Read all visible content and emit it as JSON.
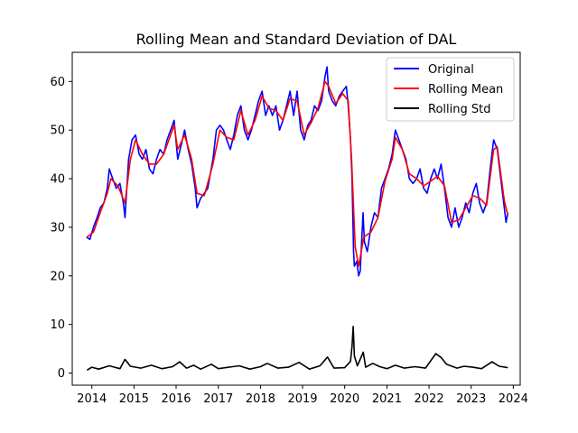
{
  "chart_data": {
    "type": "line",
    "title": "Rolling Mean and Standard Deviation of DAL",
    "xlabel": "",
    "ylabel": "",
    "xlim": [
      "2013-07-15",
      "2024-03-01"
    ],
    "ylim": [
      -2.5,
      66
    ],
    "x_ticks": [
      "2014",
      "2015",
      "2016",
      "2017",
      "2018",
      "2019",
      "2020",
      "2021",
      "2022",
      "2023",
      "2024"
    ],
    "y_ticks": [
      0,
      10,
      20,
      30,
      40,
      50,
      60
    ],
    "grid": false,
    "legend": {
      "placement": "upper right"
    },
    "series": [
      {
        "name": "Original",
        "color": "#0000ff",
        "points": [
          [
            "2013-11-15",
            28
          ],
          [
            "2013-12-15",
            27.5
          ],
          [
            "2014-01-15",
            30
          ],
          [
            "2014-02-15",
            32
          ],
          [
            "2014-03-15",
            34
          ],
          [
            "2014-04-15",
            35
          ],
          [
            "2014-05-15",
            38
          ],
          [
            "2014-06-01",
            42
          ],
          [
            "2014-07-01",
            40
          ],
          [
            "2014-08-01",
            38
          ],
          [
            "2014-09-01",
            39
          ],
          [
            "2014-10-01",
            35
          ],
          [
            "2014-10-15",
            32
          ],
          [
            "2014-11-15",
            44
          ],
          [
            "2014-12-15",
            48
          ],
          [
            "2015-01-15",
            49
          ],
          [
            "2015-02-15",
            45
          ],
          [
            "2015-03-15",
            44
          ],
          [
            "2015-04-15",
            46
          ],
          [
            "2015-05-15",
            42
          ],
          [
            "2015-06-15",
            41
          ],
          [
            "2015-07-15",
            44
          ],
          [
            "2015-08-15",
            46
          ],
          [
            "2015-09-15",
            45
          ],
          [
            "2015-10-15",
            48
          ],
          [
            "2015-11-15",
            50
          ],
          [
            "2015-12-15",
            52
          ],
          [
            "2016-01-15",
            44
          ],
          [
            "2016-02-15",
            47
          ],
          [
            "2016-03-15",
            50
          ],
          [
            "2016-04-15",
            46
          ],
          [
            "2016-05-15",
            43
          ],
          [
            "2016-06-15",
            38
          ],
          [
            "2016-07-01",
            34
          ],
          [
            "2016-08-01",
            36
          ],
          [
            "2016-09-01",
            37
          ],
          [
            "2016-10-01",
            38
          ],
          [
            "2016-11-15",
            44
          ],
          [
            "2016-12-15",
            50
          ],
          [
            "2017-01-15",
            51
          ],
          [
            "2017-02-15",
            50
          ],
          [
            "2017-03-15",
            48
          ],
          [
            "2017-04-15",
            46
          ],
          [
            "2017-05-15",
            49
          ],
          [
            "2017-06-15",
            53
          ],
          [
            "2017-07-15",
            55
          ],
          [
            "2017-08-15",
            50
          ],
          [
            "2017-09-15",
            48
          ],
          [
            "2017-10-15",
            50
          ],
          [
            "2017-11-15",
            53
          ],
          [
            "2017-12-15",
            56
          ],
          [
            "2018-01-15",
            58
          ],
          [
            "2018-02-15",
            53
          ],
          [
            "2018-03-15",
            55
          ],
          [
            "2018-04-15",
            53
          ],
          [
            "2018-05-15",
            55
          ],
          [
            "2018-06-15",
            50
          ],
          [
            "2018-07-15",
            52
          ],
          [
            "2018-08-15",
            55
          ],
          [
            "2018-09-15",
            58
          ],
          [
            "2018-10-15",
            53
          ],
          [
            "2018-11-15",
            58
          ],
          [
            "2018-12-15",
            50
          ],
          [
            "2019-01-15",
            48
          ],
          [
            "2019-02-15",
            51
          ],
          [
            "2019-03-15",
            52
          ],
          [
            "2019-04-15",
            55
          ],
          [
            "2019-05-15",
            54
          ],
          [
            "2019-06-15",
            56
          ],
          [
            "2019-07-15",
            61
          ],
          [
            "2019-08-01",
            63
          ],
          [
            "2019-08-15",
            58
          ],
          [
            "2019-09-15",
            56
          ],
          [
            "2019-10-15",
            55
          ],
          [
            "2019-11-15",
            57
          ],
          [
            "2019-12-15",
            58
          ],
          [
            "2020-01-15",
            59
          ],
          [
            "2020-02-01",
            55
          ],
          [
            "2020-02-20",
            48
          ],
          [
            "2020-03-05",
            40
          ],
          [
            "2020-03-18",
            25
          ],
          [
            "2020-03-25",
            22
          ],
          [
            "2020-04-15",
            23
          ],
          [
            "2020-05-01",
            20
          ],
          [
            "2020-05-15",
            21
          ],
          [
            "2020-06-08",
            33
          ],
          [
            "2020-06-20",
            27
          ],
          [
            "2020-07-15",
            25
          ],
          [
            "2020-08-15",
            30
          ],
          [
            "2020-09-15",
            33
          ],
          [
            "2020-10-15",
            32
          ],
          [
            "2020-11-15",
            38
          ],
          [
            "2020-12-15",
            40
          ],
          [
            "2021-01-15",
            42
          ],
          [
            "2021-02-15",
            45
          ],
          [
            "2021-03-15",
            50
          ],
          [
            "2021-04-15",
            48
          ],
          [
            "2021-05-15",
            46
          ],
          [
            "2021-06-15",
            44
          ],
          [
            "2021-07-15",
            40
          ],
          [
            "2021-08-15",
            39
          ],
          [
            "2021-09-15",
            40
          ],
          [
            "2021-10-15",
            42
          ],
          [
            "2021-11-15",
            38
          ],
          [
            "2021-12-15",
            37
          ],
          [
            "2022-01-15",
            40
          ],
          [
            "2022-02-15",
            42
          ],
          [
            "2022-03-15",
            40
          ],
          [
            "2022-04-15",
            43
          ],
          [
            "2022-05-15",
            38
          ],
          [
            "2022-06-15",
            32
          ],
          [
            "2022-07-15",
            30
          ],
          [
            "2022-08-15",
            34
          ],
          [
            "2022-09-15",
            30
          ],
          [
            "2022-10-15",
            32
          ],
          [
            "2022-11-15",
            35
          ],
          [
            "2022-12-15",
            33
          ],
          [
            "2023-01-15",
            37
          ],
          [
            "2023-02-15",
            39
          ],
          [
            "2023-03-15",
            35
          ],
          [
            "2023-04-15",
            33
          ],
          [
            "2023-05-15",
            35
          ],
          [
            "2023-06-15",
            42
          ],
          [
            "2023-07-15",
            48
          ],
          [
            "2023-08-15",
            46
          ],
          [
            "2023-09-15",
            40
          ],
          [
            "2023-10-15",
            34
          ],
          [
            "2023-10-30",
            31
          ],
          [
            "2023-11-15",
            33
          ]
        ]
      },
      {
        "name": "Rolling Mean",
        "color": "#ff0000",
        "points": [
          [
            "2013-11-20",
            28
          ],
          [
            "2014-01-15",
            29
          ],
          [
            "2014-03-15",
            33
          ],
          [
            "2014-05-15",
            37
          ],
          [
            "2014-06-15",
            40
          ],
          [
            "2014-08-15",
            38.5
          ],
          [
            "2014-10-15",
            35
          ],
          [
            "2014-12-01",
            44
          ],
          [
            "2015-01-15",
            48
          ],
          [
            "2015-03-15",
            45
          ],
          [
            "2015-05-15",
            43
          ],
          [
            "2015-07-15",
            43
          ],
          [
            "2015-09-15",
            45
          ],
          [
            "2015-11-15",
            49
          ],
          [
            "2015-12-15",
            51
          ],
          [
            "2016-01-15",
            46
          ],
          [
            "2016-03-15",
            49
          ],
          [
            "2016-05-15",
            44
          ],
          [
            "2016-07-01",
            37
          ],
          [
            "2016-09-01",
            36.5
          ],
          [
            "2016-11-15",
            43
          ],
          [
            "2017-01-15",
            50
          ],
          [
            "2017-03-15",
            48.5
          ],
          [
            "2017-05-15",
            48
          ],
          [
            "2017-07-15",
            54
          ],
          [
            "2017-09-15",
            49
          ],
          [
            "2017-11-15",
            52
          ],
          [
            "2018-01-15",
            57
          ],
          [
            "2018-03-15",
            54.5
          ],
          [
            "2018-05-15",
            54
          ],
          [
            "2018-07-15",
            52
          ],
          [
            "2018-09-15",
            56.5
          ],
          [
            "2018-11-15",
            56
          ],
          [
            "2019-01-15",
            49
          ],
          [
            "2019-03-15",
            51.5
          ],
          [
            "2019-05-15",
            54.5
          ],
          [
            "2019-07-15",
            60
          ],
          [
            "2019-08-15",
            59
          ],
          [
            "2019-10-15",
            55.5
          ],
          [
            "2019-12-15",
            57.5
          ],
          [
            "2020-02-01",
            56
          ],
          [
            "2020-03-01",
            44
          ],
          [
            "2020-04-01",
            26
          ],
          [
            "2020-05-01",
            22
          ],
          [
            "2020-06-15",
            28
          ],
          [
            "2020-08-15",
            29
          ],
          [
            "2020-10-15",
            32
          ],
          [
            "2020-12-15",
            39.5
          ],
          [
            "2021-02-15",
            44
          ],
          [
            "2021-03-15",
            48.5
          ],
          [
            "2021-05-15",
            46
          ],
          [
            "2021-07-15",
            41
          ],
          [
            "2021-09-15",
            40
          ],
          [
            "2021-11-15",
            38.5
          ],
          [
            "2022-01-15",
            39.5
          ],
          [
            "2022-03-15",
            40.5
          ],
          [
            "2022-05-15",
            38.5
          ],
          [
            "2022-07-15",
            31
          ],
          [
            "2022-09-15",
            31.5
          ],
          [
            "2022-11-15",
            34
          ],
          [
            "2023-01-15",
            36.5
          ],
          [
            "2023-03-15",
            36
          ],
          [
            "2023-05-15",
            34.5
          ],
          [
            "2023-07-15",
            46
          ],
          [
            "2023-08-15",
            46.5
          ],
          [
            "2023-10-15",
            35.5
          ],
          [
            "2023-11-15",
            32.5
          ]
        ]
      },
      {
        "name": "Rolling Std",
        "color": "#000000",
        "points": [
          [
            "2013-11-20",
            0.6
          ],
          [
            "2014-01-01",
            1.2
          ],
          [
            "2014-03-01",
            0.8
          ],
          [
            "2014-06-01",
            1.5
          ],
          [
            "2014-09-01",
            0.9
          ],
          [
            "2014-10-15",
            2.8
          ],
          [
            "2014-12-01",
            1.4
          ],
          [
            "2015-03-01",
            1.0
          ],
          [
            "2015-06-01",
            1.6
          ],
          [
            "2015-09-01",
            0.9
          ],
          [
            "2015-12-01",
            1.3
          ],
          [
            "2016-02-01",
            2.3
          ],
          [
            "2016-04-01",
            1.0
          ],
          [
            "2016-06-01",
            1.6
          ],
          [
            "2016-08-01",
            0.8
          ],
          [
            "2016-11-01",
            1.8
          ],
          [
            "2017-01-01",
            0.9
          ],
          [
            "2017-04-01",
            1.2
          ],
          [
            "2017-07-01",
            1.5
          ],
          [
            "2017-10-01",
            0.8
          ],
          [
            "2018-01-01",
            1.3
          ],
          [
            "2018-03-01",
            2.0
          ],
          [
            "2018-06-01",
            1.0
          ],
          [
            "2018-09-01",
            1.2
          ],
          [
            "2018-12-01",
            2.2
          ],
          [
            "2019-03-01",
            0.8
          ],
          [
            "2019-06-01",
            1.5
          ],
          [
            "2019-08-05",
            3.3
          ],
          [
            "2019-10-01",
            1.0
          ],
          [
            "2020-01-01",
            1.1
          ],
          [
            "2020-02-20",
            2.4
          ],
          [
            "2020-03-05",
            5.5
          ],
          [
            "2020-03-15",
            9.6
          ],
          [
            "2020-03-25",
            3.5
          ],
          [
            "2020-04-20",
            1.5
          ],
          [
            "2020-06-10",
            4.3
          ],
          [
            "2020-07-01",
            1.2
          ],
          [
            "2020-09-01",
            2.0
          ],
          [
            "2020-11-01",
            1.3
          ],
          [
            "2021-01-01",
            0.9
          ],
          [
            "2021-03-15",
            1.6
          ],
          [
            "2021-06-01",
            1.0
          ],
          [
            "2021-09-01",
            1.3
          ],
          [
            "2021-12-01",
            1.0
          ],
          [
            "2022-03-01",
            4.0
          ],
          [
            "2022-04-15",
            3.2
          ],
          [
            "2022-06-01",
            1.8
          ],
          [
            "2022-09-01",
            1.0
          ],
          [
            "2022-11-01",
            1.4
          ],
          [
            "2023-01-15",
            1.2
          ],
          [
            "2023-04-01",
            0.9
          ],
          [
            "2023-07-01",
            2.3
          ],
          [
            "2023-09-01",
            1.4
          ],
          [
            "2023-11-15",
            1.1
          ]
        ]
      }
    ]
  }
}
